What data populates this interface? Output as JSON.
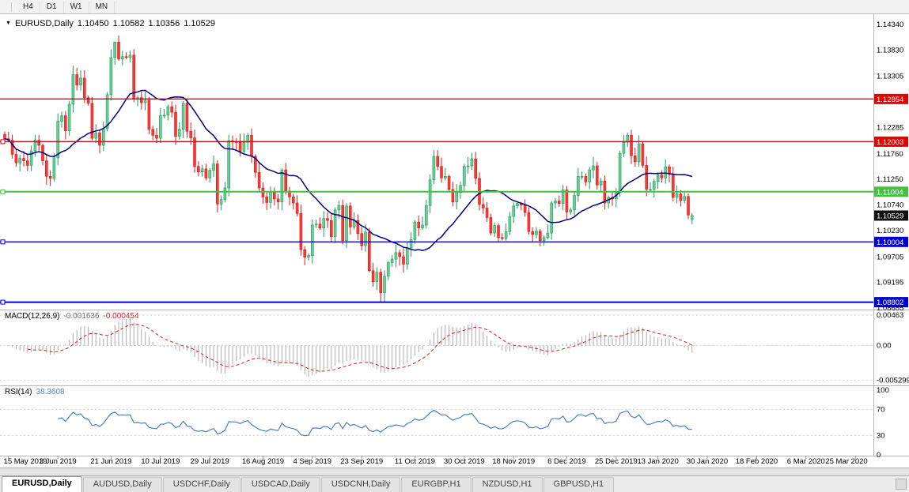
{
  "toolbar": {
    "timeframes": [
      "H4",
      "D1",
      "W1",
      "MN"
    ]
  },
  "chart": {
    "menu_icon": "▼",
    "title_symbol": "EURUSD,Daily",
    "ohlc": {
      "open": "1.10450",
      "high": "1.10582",
      "low": "1.10356",
      "close": "1.10529"
    }
  },
  "macd_panel": {
    "label": "MACD(12,26,9)",
    "value_main": "-0.001636",
    "value_signal": "-0.000454",
    "axis": [
      "0.00463",
      "0.00",
      "-0.005299"
    ]
  },
  "rsi_panel": {
    "label": "RSI(14)",
    "value": "38.3608",
    "axis": [
      "100",
      "70",
      "30",
      "0"
    ]
  },
  "tabs": {
    "items": [
      {
        "label": "EURUSD,Daily",
        "active": true
      },
      {
        "label": "AUDUSD,Daily",
        "active": false
      },
      {
        "label": "USDCHF,Daily",
        "active": false
      },
      {
        "label": "USDCAD,Daily",
        "active": false
      },
      {
        "label": "USDCNH,Daily",
        "active": false
      },
      {
        "label": "EURGBP,H1",
        "active": false
      },
      {
        "label": "NZDUSD,H1",
        "active": false
      },
      {
        "label": "GBPUSD,H1",
        "active": false
      }
    ]
  },
  "chart_data": {
    "type": "candlestick",
    "symbol": "EURUSD",
    "timeframe": "Daily",
    "price_range": {
      "top": 1.14545,
      "bottom": 1.08654
    },
    "y_axis_labels": [
      "1.14340",
      "1.13830",
      "1.13305",
      "1.12790",
      "1.12285",
      "1.11760",
      "1.11250",
      "1.10740",
      "1.10230",
      "1.09705",
      "1.09195",
      "1.08685"
    ],
    "x_labels": [
      {
        "text": "15 May 2019",
        "index": 1
      },
      {
        "text": "3 Jun 2019",
        "index": 14
      },
      {
        "text": "21 Jun 2019",
        "index": 28
      },
      {
        "text": "10 Jul 2019",
        "index": 41
      },
      {
        "text": "29 Jul 2019",
        "index": 54
      },
      {
        "text": "16 Aug 2019",
        "index": 68
      },
      {
        "text": "4 Sep 2019",
        "index": 81
      },
      {
        "text": "23 Sep 2019",
        "index": 94
      },
      {
        "text": "11 Oct 2019",
        "index": 108
      },
      {
        "text": "30 Oct 2019",
        "index": 121
      },
      {
        "text": "18 Nov 2019",
        "index": 134
      },
      {
        "text": "6 Dec 2019",
        "index": 148
      },
      {
        "text": "25 Dec 2019",
        "index": 161
      },
      {
        "text": "13 Jan 2020",
        "index": 172
      },
      {
        "text": "30 Jan 2020",
        "index": 185
      },
      {
        "text": "18 Feb 2020",
        "index": 198
      },
      {
        "text": "6 Mar 2020",
        "index": 211
      },
      {
        "text": "25 Mar 2020",
        "index": 224
      }
    ],
    "levels": [
      {
        "value": 1.12854,
        "text": "1.12854",
        "color": "#E60000",
        "width": 1.4,
        "handle": false
      },
      {
        "value": 1.12003,
        "text": "1.12003",
        "color": "#E60000",
        "width": 1.4,
        "handle": true
      },
      {
        "value": 1.11004,
        "text": "1.11004",
        "color": "#44C144",
        "width": 2,
        "handle": true
      },
      {
        "value": 1.10004,
        "text": "1.10004",
        "color": "#0000CC",
        "width": 1.4,
        "handle": true
      },
      {
        "value": 1.08802,
        "text": "1.08802",
        "color": "#0000CC",
        "width": 2,
        "handle": true
      }
    ],
    "current_price": {
      "value": 1.10529,
      "text": "1.10529",
      "badge_color": "#101010"
    },
    "ma": {
      "period": 20,
      "color": "#000080"
    },
    "macd": {
      "fast": 12,
      "slow": 26,
      "signal": 9,
      "ylim": [
        -0.0056,
        0.005
      ],
      "colors": {
        "hist": "#ABABAB",
        "signal": "#D42020"
      }
    },
    "rsi": {
      "period": 14,
      "ylim": [
        0,
        100
      ],
      "levels": [
        30,
        70
      ],
      "color": "#4E7FBE"
    },
    "candle_colors": {
      "up_fill": "#6BCD97",
      "up_stroke": "#1F9D5B",
      "down_fill": "#F23B3B",
      "down_stroke": "#DE1B1B"
    },
    "first_open": 1.1215,
    "closes": [
      1.1206,
      1.1203,
      1.1175,
      1.1158,
      1.1167,
      1.1162,
      1.1153,
      1.1182,
      1.1203,
      1.1193,
      1.1162,
      1.1131,
      1.1127,
      1.1168,
      1.1241,
      1.1252,
      1.1222,
      1.1275,
      1.1334,
      1.1313,
      1.1327,
      1.1288,
      1.1277,
      1.1207,
      1.1218,
      1.1193,
      1.1226,
      1.1294,
      1.1368,
      1.1399,
      1.1365,
      1.137,
      1.1368,
      1.1373,
      1.1285,
      1.1288,
      1.1278,
      1.1283,
      1.1225,
      1.1213,
      1.1207,
      1.1252,
      1.1253,
      1.127,
      1.1259,
      1.1211,
      1.1225,
      1.1277,
      1.1221,
      1.1208,
      1.1151,
      1.114,
      1.1146,
      1.1128,
      1.1143,
      1.1156,
      1.1076,
      1.1085,
      1.1108,
      1.1202,
      1.12,
      1.1199,
      1.1181,
      1.1199,
      1.1213,
      1.1171,
      1.1139,
      1.1108,
      1.109,
      1.1079,
      1.1099,
      1.1086,
      1.108,
      1.1144,
      1.1102,
      1.109,
      1.1078,
      1.1057,
      1.0985,
      1.097,
      1.0973,
      1.1034,
      1.1036,
      1.1028,
      1.1047,
      1.1043,
      1.1011,
      1.1064,
      1.1073,
      1.1003,
      1.1072,
      1.103,
      1.1043,
      1.1017,
      1.0993,
      1.102,
      1.0943,
      1.0921,
      1.094,
      1.0899,
      1.0932,
      1.0959,
      1.0966,
      1.0979,
      1.0971,
      1.0956,
      1.0988,
      1.1005,
      1.104,
      1.1028,
      1.1034,
      1.1073,
      1.1124,
      1.1171,
      1.1151,
      1.1128,
      1.1131,
      1.1105,
      1.108,
      1.1099,
      1.1113,
      1.1151,
      1.1152,
      1.1166,
      1.1127,
      1.1075,
      1.1068,
      1.1049,
      1.1018,
      1.1033,
      1.1009,
      1.1007,
      1.1021,
      1.1051,
      1.1072,
      1.1077,
      1.1074,
      1.1059,
      1.1021,
      1.1015,
      1.1022,
      1.1003,
      1.1009,
      1.1018,
      1.1078,
      1.1082,
      1.1077,
      1.1104,
      1.106,
      1.1064,
      1.1093,
      1.1131,
      1.1131,
      1.112,
      1.1144,
      1.1152,
      1.1114,
      1.1122,
      1.1078,
      1.1089,
      1.1086,
      1.1099,
      1.1177,
      1.1199,
      1.1213,
      1.1172,
      1.116,
      1.1196,
      1.1153,
      1.1105,
      1.1105,
      1.1121,
      1.1134,
      1.1128,
      1.115,
      1.1135,
      1.1089,
      1.1096,
      1.1083,
      1.1091,
      1.1054,
      1.10529
    ],
    "spikes": [
      {
        "i": 29,
        "high": 1.14
      },
      {
        "i": 30,
        "high": 1.1412
      },
      {
        "i": 99,
        "low": 1.0881
      },
      {
        "i": 100,
        "low": 1.0879
      }
    ],
    "last_candle": [
      1.1045,
      1.10582,
      1.10356,
      1.10529
    ]
  }
}
